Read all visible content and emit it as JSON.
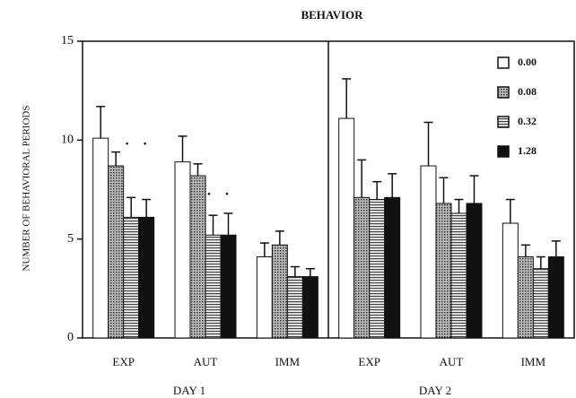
{
  "chart_data": {
    "type": "bar",
    "title": "BEHAVIOR",
    "y_label": "NUMBER OF BEHAVIORAL PERIODS",
    "ylim": [
      0,
      15
    ],
    "yticks": [
      0,
      5,
      10,
      15
    ],
    "categories": [
      "EXP",
      "AUT",
      "IMM",
      "EXP",
      "AUT",
      "IMM"
    ],
    "groups": [
      "DAY 1",
      "DAY 2"
    ],
    "annotations": [
      ". .",
      ". ."
    ],
    "series": [
      {
        "name": "0.00",
        "color": "#ffffff",
        "pattern": "solid",
        "values": [
          10.1,
          8.9,
          4.1,
          11.1,
          8.7,
          5.8
        ],
        "errors": [
          1.6,
          1.3,
          0.7,
          2.0,
          2.2,
          1.2
        ]
      },
      {
        "name": "0.08",
        "color": "#555555",
        "pattern": "dots",
        "values": [
          8.7,
          8.2,
          4.7,
          7.1,
          6.8,
          4.1
        ],
        "errors": [
          0.7,
          0.6,
          0.7,
          1.9,
          1.3,
          0.6
        ]
      },
      {
        "name": "0.32",
        "color": "#555555",
        "pattern": "stripes",
        "values": [
          6.1,
          5.2,
          3.1,
          7.0,
          6.3,
          3.5
        ],
        "errors": [
          1.0,
          1.0,
          0.5,
          0.9,
          0.7,
          0.6
        ]
      },
      {
        "name": "1.28",
        "color": "#111111",
        "pattern": "solid",
        "values": [
          6.1,
          5.2,
          3.1,
          7.1,
          6.8,
          4.1
        ],
        "errors": [
          0.9,
          1.1,
          0.4,
          1.2,
          1.4,
          0.8
        ]
      }
    ]
  }
}
